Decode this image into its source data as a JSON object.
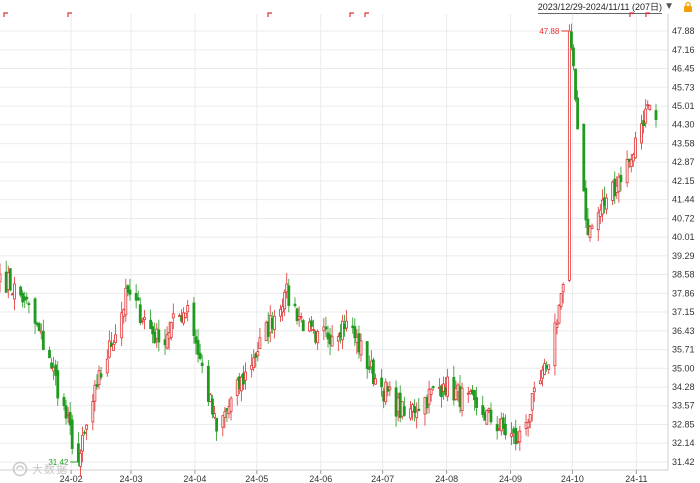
{
  "header": {
    "date_range": "2023/12/29-2024/11/11 (207日)",
    "dropdown_icon": "triangle-down-icon",
    "lock_icon": "lock-icon"
  },
  "watermark": {
    "text": "大数据",
    "icon": "logo-mark"
  },
  "colors": {
    "up": "#e03030",
    "down": "#1f9a1f",
    "grid": "#ebebeb",
    "axis_text": "#333333"
  },
  "chart_data": {
    "type": "candlestick",
    "x_labels": [
      "24-02",
      "24-03",
      "24-04",
      "24-05",
      "24-06",
      "24-07",
      "24-08",
      "24-09",
      "24-10",
      "24-11"
    ],
    "y_ticks": [
      "47.88",
      "47.16",
      "46.45",
      "45.73",
      "45.01",
      "44.30",
      "43.58",
      "42.87",
      "42.15",
      "41.44",
      "40.72",
      "40.01",
      "39.29",
      "38.58",
      "37.86",
      "37.15",
      "36.43",
      "35.71",
      "35.00",
      "34.28",
      "33.57",
      "32.85",
      "32.14",
      "31.42"
    ],
    "ylim": [
      31.42,
      47.88
    ],
    "max_label": "47.88",
    "min_label": "31.42",
    "key_points": [
      {
        "x": "2023-12-29",
        "price": 38.6
      },
      {
        "x": "2024-01-10",
        "price": 37.6
      },
      {
        "x": "2024-01-22",
        "price": 35.4
      },
      {
        "x": "2024-02-05",
        "price": 31.42
      },
      {
        "x": "2024-02-14",
        "price": 34.3
      },
      {
        "x": "2024-02-29",
        "price": 37.9
      },
      {
        "x": "2024-03-15",
        "price": 36.0
      },
      {
        "x": "2024-03-29",
        "price": 37.4
      },
      {
        "x": "2024-04-12",
        "price": 32.6
      },
      {
        "x": "2024-04-30",
        "price": 35.4
      },
      {
        "x": "2024-05-15",
        "price": 37.9
      },
      {
        "x": "2024-05-30",
        "price": 36.0
      },
      {
        "x": "2024-06-14",
        "price": 36.8
      },
      {
        "x": "2024-06-28",
        "price": 34.6
      },
      {
        "x": "2024-07-12",
        "price": 33.2
      },
      {
        "x": "2024-07-31",
        "price": 34.4
      },
      {
        "x": "2024-08-16",
        "price": 33.5
      },
      {
        "x": "2024-09-05",
        "price": 32.2
      },
      {
        "x": "2024-09-19",
        "price": 35.0
      },
      {
        "x": "2024-09-27",
        "price": 38.2
      },
      {
        "x": "2024-09-30",
        "price": 47.88
      },
      {
        "x": "2024-10-09",
        "price": 40.1
      },
      {
        "x": "2024-10-18",
        "price": 41.5
      },
      {
        "x": "2024-10-29",
        "price": 42.9
      },
      {
        "x": "2024-11-06",
        "price": 44.9
      },
      {
        "x": "2024-11-11",
        "price": 44.5
      }
    ]
  }
}
